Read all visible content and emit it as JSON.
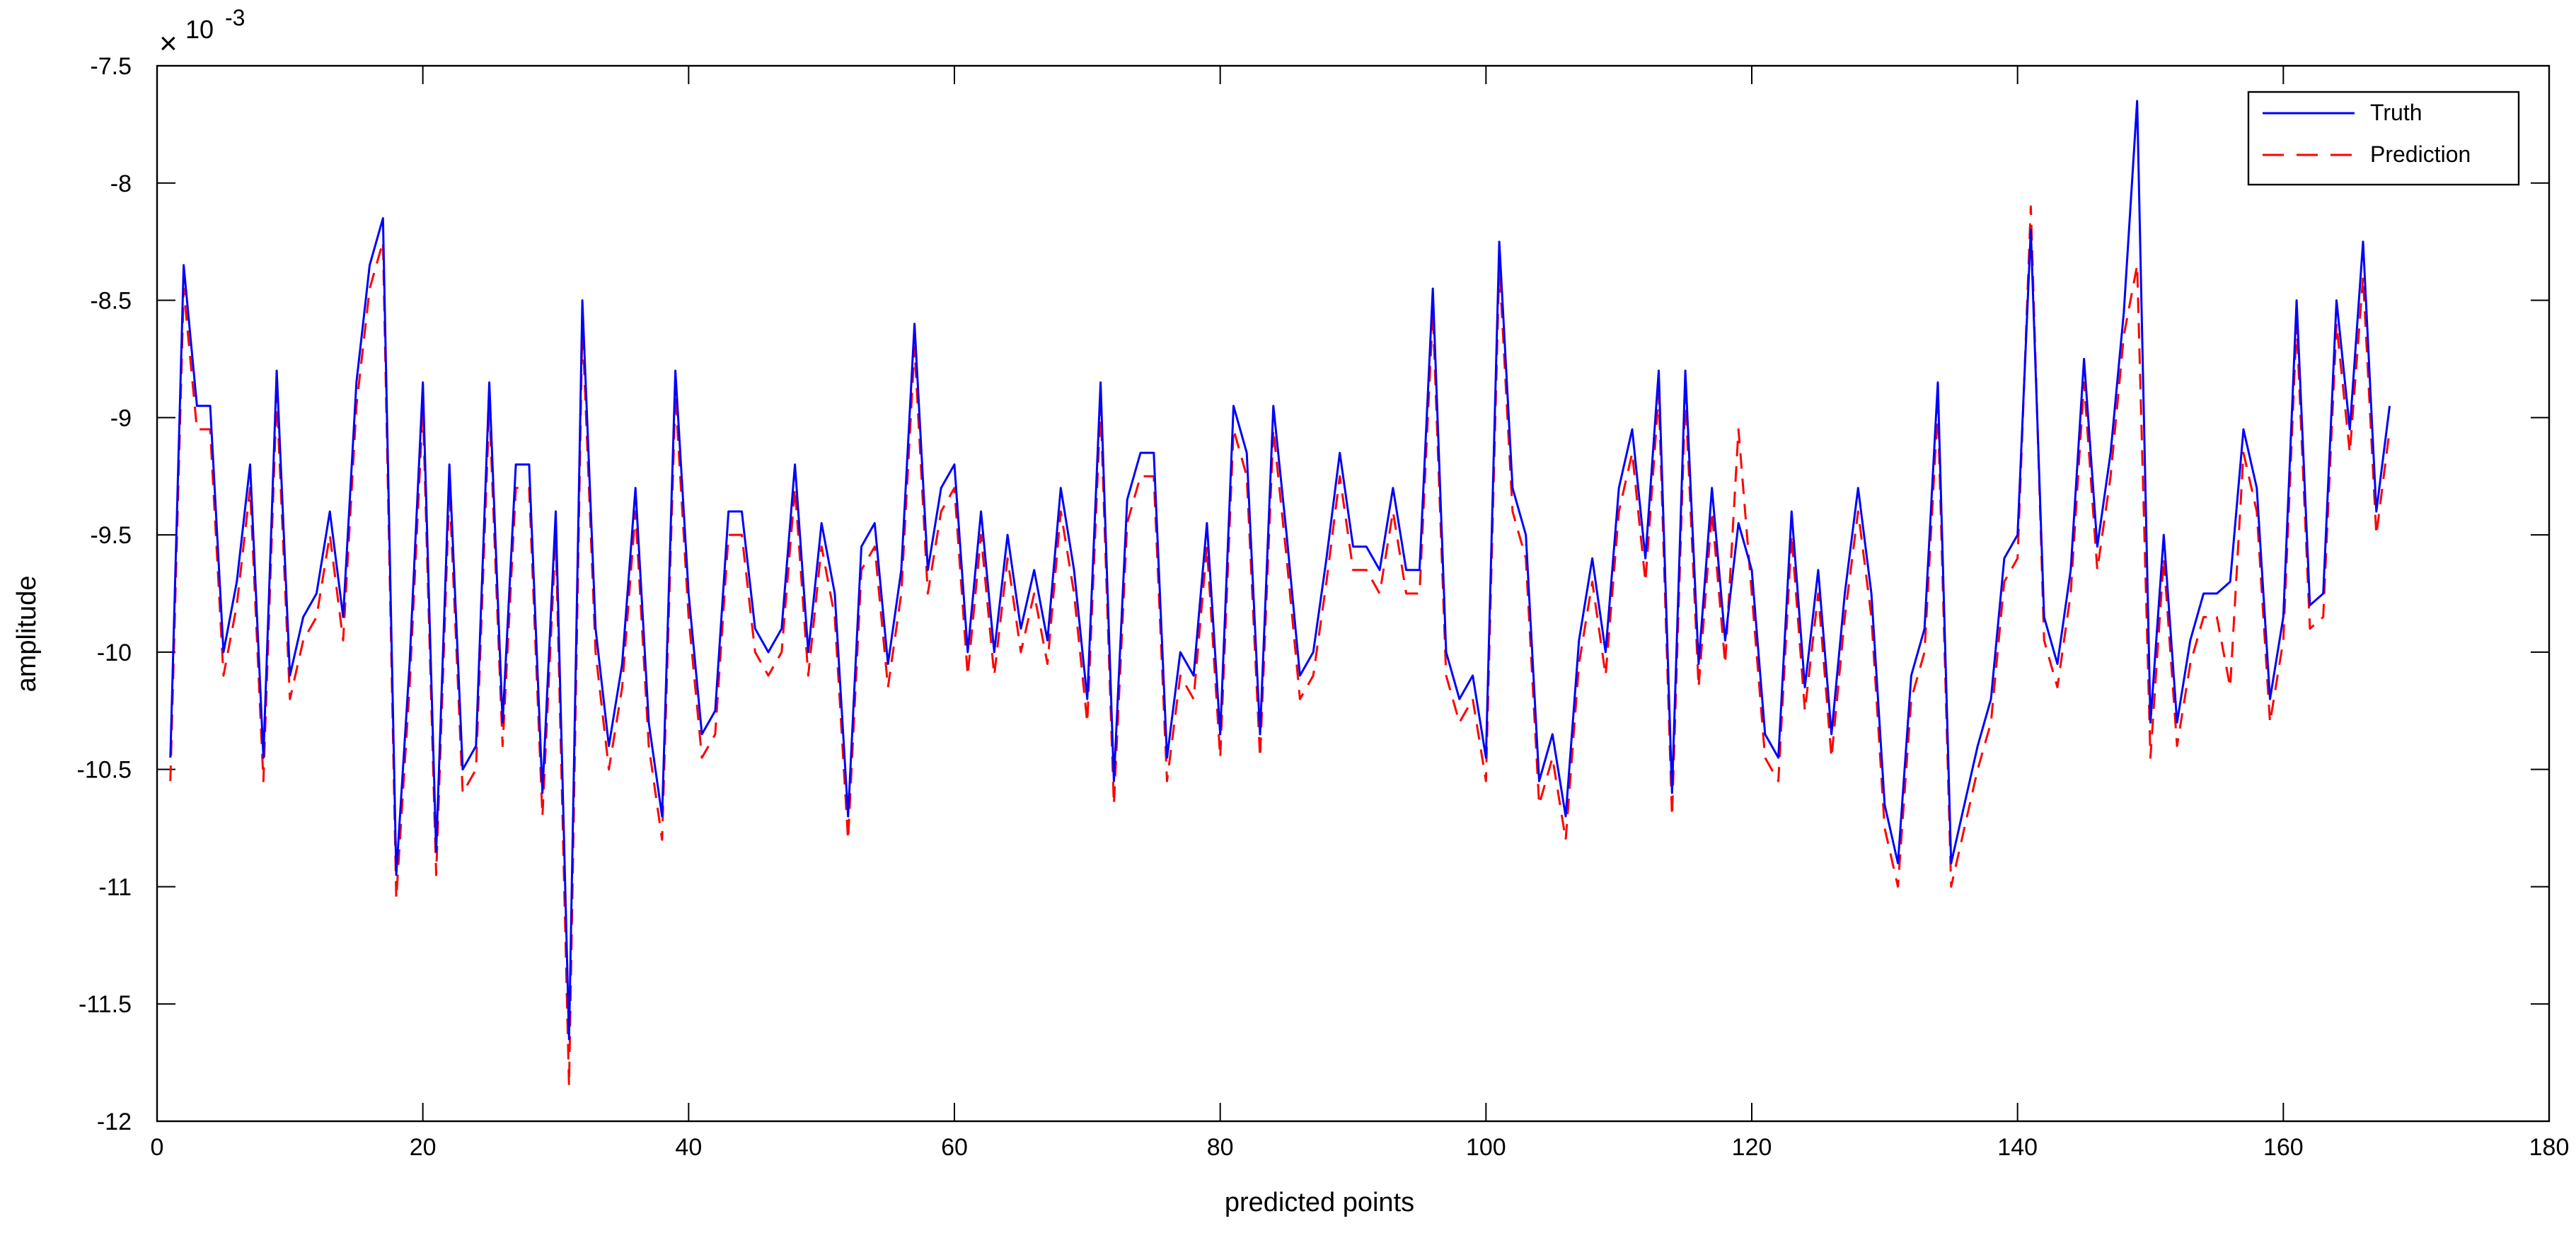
{
  "chart_data": {
    "type": "line",
    "title": "",
    "xlabel": "predicted points",
    "ylabel": "amplitude",
    "exponent_label": {
      "times": "×",
      "base": "10",
      "power": "-3"
    },
    "xlim": [
      0,
      180
    ],
    "ylim": [
      -12,
      -7.5
    ],
    "xticks": [
      0,
      20,
      40,
      60,
      80,
      100,
      120,
      140,
      160,
      180
    ],
    "yticks": [
      -7.5,
      -8,
      -8.5,
      -9,
      -9.5,
      -10,
      -10.5,
      -11,
      -11.5,
      -12
    ],
    "grid": false,
    "legend_position": "top-right",
    "x": [
      1,
      2,
      3,
      4,
      5,
      6,
      7,
      8,
      9,
      10,
      11,
      12,
      13,
      14,
      15,
      16,
      17,
      18,
      19,
      20,
      21,
      22,
      23,
      24,
      25,
      26,
      27,
      28,
      29,
      30,
      31,
      32,
      33,
      34,
      35,
      36,
      37,
      38,
      39,
      40,
      41,
      42,
      43,
      44,
      45,
      46,
      47,
      48,
      49,
      50,
      51,
      52,
      53,
      54,
      55,
      56,
      57,
      58,
      59,
      60,
      61,
      62,
      63,
      64,
      65,
      66,
      67,
      68,
      69,
      70,
      71,
      72,
      73,
      74,
      75,
      76,
      77,
      78,
      79,
      80,
      81,
      82,
      83,
      84,
      85,
      86,
      87,
      88,
      89,
      90,
      91,
      92,
      93,
      94,
      95,
      96,
      97,
      98,
      99,
      100,
      101,
      102,
      103,
      104,
      105,
      106,
      107,
      108,
      109,
      110,
      111,
      112,
      113,
      114,
      115,
      116,
      117,
      118,
      119,
      120,
      121,
      122,
      123,
      124,
      125,
      126,
      127,
      128,
      129,
      130,
      131,
      132,
      133,
      134,
      135,
      136,
      137,
      138,
      139,
      140,
      141,
      142,
      143,
      144,
      145,
      146,
      147,
      148,
      149,
      150,
      151,
      152,
      153,
      154,
      155,
      156,
      157,
      158,
      159,
      160,
      161,
      162,
      163,
      164,
      165,
      166,
      167,
      168
    ],
    "series": [
      {
        "name": "Truth",
        "color": "#0000ff",
        "style": "solid",
        "values": [
          -10.45,
          -8.35,
          -8.95,
          -8.95,
          -10.0,
          -9.7,
          -9.2,
          -10.45,
          -8.8,
          -10.1,
          -9.85,
          -9.75,
          -9.4,
          -9.85,
          -8.85,
          -8.35,
          -8.15,
          -10.95,
          -10.05,
          -8.85,
          -10.85,
          -9.2,
          -10.5,
          -10.4,
          -8.85,
          -10.3,
          -9.2,
          -9.2,
          -10.6,
          -9.4,
          -11.65,
          -8.5,
          -9.9,
          -10.4,
          -10.05,
          -9.3,
          -10.3,
          -10.7,
          -8.8,
          -9.75,
          -10.35,
          -10.25,
          -9.4,
          -9.4,
          -9.9,
          -10.0,
          -9.9,
          -9.2,
          -10.0,
          -9.45,
          -9.75,
          -10.7,
          -9.55,
          -9.45,
          -10.05,
          -9.65,
          -8.6,
          -9.65,
          -9.3,
          -9.2,
          -10.0,
          -9.4,
          -10.0,
          -9.5,
          -9.9,
          -9.65,
          -9.95,
          -9.3,
          -9.65,
          -10.2,
          -8.85,
          -10.55,
          -9.35,
          -9.15,
          -9.15,
          -10.45,
          -10.0,
          -10.1,
          -9.45,
          -10.35,
          -8.95,
          -9.15,
          -10.35,
          -8.95,
          -9.5,
          -10.1,
          -10.0,
          -9.6,
          -9.15,
          -9.55,
          -9.55,
          -9.65,
          -9.3,
          -9.65,
          -9.65,
          -8.45,
          -10.0,
          -10.2,
          -10.1,
          -10.45,
          -8.25,
          -9.3,
          -9.5,
          -10.55,
          -10.35,
          -10.7,
          -9.95,
          -9.6,
          -10.0,
          -9.3,
          -9.05,
          -9.6,
          -8.8,
          -10.6,
          -8.8,
          -10.05,
          -9.3,
          -9.95,
          -9.45,
          -9.65,
          -10.35,
          -10.45,
          -9.4,
          -10.15,
          -9.65,
          -10.35,
          -9.75,
          -9.3,
          -9.75,
          -10.65,
          -10.9,
          -10.1,
          -9.9,
          -8.85,
          -10.9,
          -10.65,
          -10.4,
          -10.2,
          -9.6,
          -9.5,
          -8.2,
          -9.85,
          -10.05,
          -9.65,
          -8.75,
          -9.55,
          -9.15,
          -8.55,
          -7.65,
          -10.3,
          -9.5,
          -10.3,
          -9.95,
          -9.75,
          -9.75,
          -9.7,
          -9.05,
          -9.3,
          -10.2,
          -9.85,
          -8.5,
          -9.8,
          -9.75,
          -8.5,
          -9.05,
          -8.25,
          -9.4,
          -8.95
        ]
      },
      {
        "name": "Prediction",
        "color": "#ff0000",
        "style": "dashed",
        "values": [
          -10.55,
          -8.45,
          -9.05,
          -9.05,
          -10.1,
          -9.8,
          -9.3,
          -10.55,
          -8.9,
          -10.2,
          -9.95,
          -9.85,
          -9.5,
          -9.95,
          -8.95,
          -8.45,
          -8.25,
          -11.05,
          -10.15,
          -8.95,
          -10.95,
          -9.3,
          -10.6,
          -10.5,
          -8.95,
          -10.4,
          -9.3,
          -9.3,
          -10.7,
          -9.5,
          -11.85,
          -8.6,
          -10.0,
          -10.5,
          -10.15,
          -9.4,
          -10.4,
          -10.8,
          -8.9,
          -9.85,
          -10.45,
          -10.35,
          -9.5,
          -9.5,
          -10.0,
          -10.1,
          -10.0,
          -9.3,
          -10.1,
          -9.55,
          -9.85,
          -10.8,
          -9.65,
          -9.55,
          -10.15,
          -9.75,
          -8.7,
          -9.75,
          -9.4,
          -9.3,
          -10.1,
          -9.5,
          -10.1,
          -9.6,
          -10.0,
          -9.75,
          -10.05,
          -9.4,
          -9.75,
          -10.3,
          -8.95,
          -10.65,
          -9.45,
          -9.25,
          -9.25,
          -10.55,
          -10.1,
          -10.2,
          -9.55,
          -10.45,
          -9.05,
          -9.25,
          -10.45,
          -9.05,
          -9.6,
          -10.2,
          -10.1,
          -9.7,
          -9.25,
          -9.65,
          -9.65,
          -9.75,
          -9.4,
          -9.75,
          -9.75,
          -8.55,
          -10.1,
          -10.3,
          -10.2,
          -10.55,
          -8.35,
          -9.4,
          -9.6,
          -10.65,
          -10.45,
          -10.8,
          -10.05,
          -9.7,
          -10.1,
          -9.4,
          -9.15,
          -9.7,
          -8.9,
          -10.7,
          -8.9,
          -10.15,
          -9.4,
          -10.05,
          -9.05,
          -9.75,
          -10.45,
          -10.55,
          -9.5,
          -10.25,
          -9.75,
          -10.45,
          -9.85,
          -9.4,
          -9.85,
          -10.75,
          -11.0,
          -10.2,
          -10.0,
          -8.95,
          -11.0,
          -10.75,
          -10.5,
          -10.3,
          -9.7,
          -9.6,
          -8.1,
          -9.95,
          -10.15,
          -9.75,
          -8.85,
          -9.65,
          -9.25,
          -8.65,
          -8.35,
          -10.45,
          -9.6,
          -10.4,
          -10.05,
          -9.85,
          -9.85,
          -10.15,
          -9.15,
          -9.4,
          -10.3,
          -9.95,
          -8.6,
          -9.9,
          -9.85,
          -8.6,
          -9.15,
          -8.4,
          -9.5,
          -9.05
        ]
      }
    ]
  }
}
